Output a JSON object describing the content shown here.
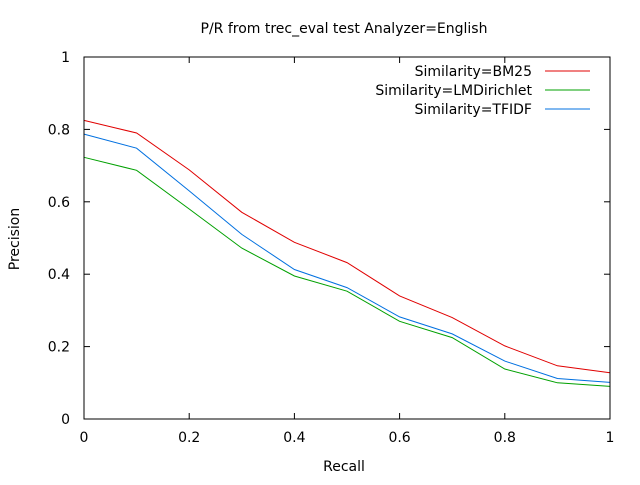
{
  "chart_data": {
    "type": "line",
    "title": "P/R from trec_eval test Analyzer=English",
    "xlabel": "Recall",
    "ylabel": "Precision",
    "xlim": [
      0,
      1
    ],
    "ylim": [
      0,
      1
    ],
    "grid": false,
    "legend_position": "top-right",
    "x": [
      0,
      0.1,
      0.2,
      0.3,
      0.4,
      0.5,
      0.6,
      0.7,
      0.8,
      0.9,
      1.0
    ],
    "x_tick_labels": [
      "0",
      "0.2",
      "0.4",
      "0.6",
      "0.8",
      "1"
    ],
    "y_tick_labels": [
      "0",
      "0.2",
      "0.4",
      "0.6",
      "0.8",
      "1"
    ],
    "series": [
      {
        "name": "Similarity=BM25",
        "color": "#e00000",
        "values": [
          0.825,
          0.79,
          0.688,
          0.571,
          0.488,
          0.432,
          0.34,
          0.28,
          0.202,
          0.147,
          0.128
        ]
      },
      {
        "name": "Similarity=LMDirichlet",
        "color": "#00a000",
        "values": [
          0.723,
          0.687,
          0.58,
          0.472,
          0.395,
          0.353,
          0.27,
          0.225,
          0.138,
          0.1,
          0.09
        ]
      },
      {
        "name": "Similarity=TFIDF",
        "color": "#0070e0",
        "values": [
          0.787,
          0.748,
          0.63,
          0.51,
          0.413,
          0.363,
          0.282,
          0.235,
          0.16,
          0.112,
          0.101
        ]
      }
    ]
  }
}
